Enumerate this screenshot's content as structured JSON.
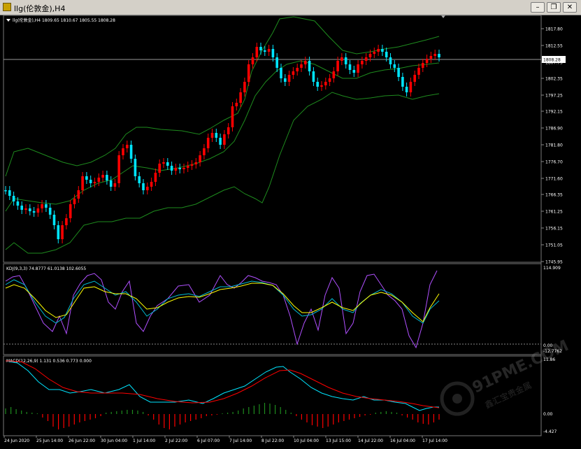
{
  "window": {
    "title": "llg(伦敦金),H4"
  },
  "main_panel": {
    "header": "llg(伦敦金),H4  1809.65 1810.67 1805.55 1808.28",
    "price_ticks": [
      "1817.80",
      "1812.55",
      "1807.75",
      "1802.35",
      "1797.25",
      "1792.15",
      "1786.90",
      "1781.80",
      "1776.70",
      "1771.60",
      "1766.35",
      "1761.25",
      "1756.15",
      "1751.05",
      "1745.95"
    ],
    "current_price": "1808.28"
  },
  "kdj_panel": {
    "header": "KDJ(9,3,3) 74.8777 61.0138 102.6055",
    "ticks": [
      "114.909",
      "0.00",
      "-12.7762"
    ]
  },
  "macd_panel": {
    "header": "MACD(12,26,9) 1.131 0.536 0.773 0.000",
    "ticks": [
      "11.86",
      "0.00",
      "-4.427"
    ]
  },
  "time_axis": [
    "24 Jun 2020",
    "25 Jun 14:00",
    "26 Jun 22:00",
    "30 Jun 04:00",
    "1 Jul 14:00",
    "2 Jul 22:00",
    "6 Jul 07:00",
    "7 Jul 14:00",
    "8 Jul 22:00",
    "10 Jul 04:00",
    "13 Jul 15:00",
    "14 Jul 22:00",
    "16 Jul 04:00",
    "17 Jul 14:00"
  ],
  "watermark": {
    "text": "91PME.COM",
    "subtext": "鑫汇宝贵金属"
  },
  "colors": {
    "bull": "#ff0000",
    "bear": "#00e5ff",
    "band": "#1e8b1e",
    "k": "#00bcd4",
    "d": "#ffff00",
    "j": "#b050ff",
    "macd": "#00e5ff",
    "signal": "#ff0000",
    "hist_pos": "#1e8b1e",
    "hist_neg": "#ff0000"
  }
}
